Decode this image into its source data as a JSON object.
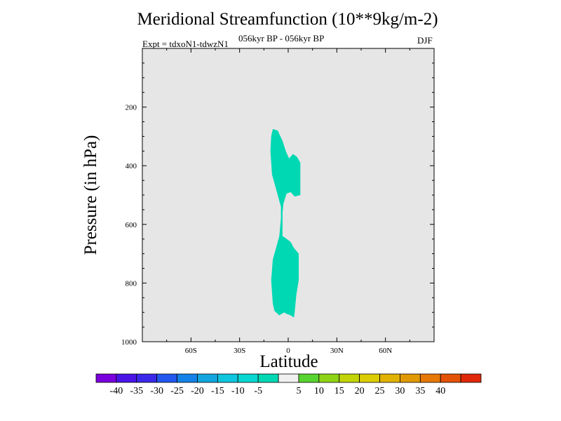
{
  "title": "Meridional Streamfunction (10**9kg/m-2)",
  "subtitle_left": "Expt = tdxoN1-tdwzN1",
  "subtitle_center": "056kyr BP - 056kyr BP",
  "subtitle_right": "DJF",
  "chart_data": {
    "type": "contour",
    "title": "Meridional Streamfunction (10**9kg/m-2)",
    "xlabel": "Latitude",
    "ylabel": "Pressure (in hPa)",
    "xlim": [
      -90,
      90
    ],
    "ylim": [
      1000,
      0
    ],
    "x_ticks": [
      {
        "value": -60,
        "label": "60S"
      },
      {
        "value": -30,
        "label": "30S"
      },
      {
        "value": 0,
        "label": "0"
      },
      {
        "value": 30,
        "label": "30N"
      },
      {
        "value": 60,
        "label": "60N"
      }
    ],
    "y_ticks": [
      {
        "value": 200,
        "label": "200"
      },
      {
        "value": 400,
        "label": "400"
      },
      {
        "value": 600,
        "label": "600"
      },
      {
        "value": 800,
        "label": "800"
      },
      {
        "value": 1000,
        "label": "1000"
      }
    ],
    "background_color": "#e6e6e6",
    "filled_regions": [
      {
        "level_range": [
          -10,
          -5
        ],
        "color": "#00d8b4",
        "polygon": [
          [
            -9.5,
            275
          ],
          [
            -6.5,
            280
          ],
          [
            -3.5,
            315
          ],
          [
            -1.5,
            350
          ],
          [
            0.5,
            375
          ],
          [
            3,
            360
          ],
          [
            5.5,
            370
          ],
          [
            7.5,
            390
          ],
          [
            7.5,
            500
          ],
          [
            4,
            505
          ],
          [
            1.5,
            490
          ],
          [
            -1,
            495
          ],
          [
            -3,
            530
          ],
          [
            -3.5,
            560
          ],
          [
            -3.5,
            640
          ],
          [
            -2,
            645
          ],
          [
            1.5,
            660
          ],
          [
            3.5,
            680
          ],
          [
            6.5,
            700
          ],
          [
            6.5,
            790
          ],
          [
            5,
            840
          ],
          [
            4,
            900
          ],
          [
            3.5,
            918
          ],
          [
            1.5,
            910
          ],
          [
            -1,
            905
          ],
          [
            -2.5,
            900
          ],
          [
            -5.5,
            910
          ],
          [
            -8.5,
            895
          ],
          [
            -9.5,
            870
          ],
          [
            -10.5,
            790
          ],
          [
            -9.5,
            720
          ],
          [
            -7.5,
            680
          ],
          [
            -5.5,
            640
          ],
          [
            -4.5,
            580
          ],
          [
            -4.5,
            540
          ],
          [
            -6.5,
            500
          ],
          [
            -8.5,
            460
          ],
          [
            -10,
            430
          ],
          [
            -11,
            350
          ],
          [
            -10.5,
            300
          ]
        ]
      }
    ],
    "colorbar": {
      "orientation": "horizontal",
      "colors": [
        "#7a00dc",
        "#4a14e6",
        "#3a28ea",
        "#2258ee",
        "#1482e8",
        "#12a6e0",
        "#0ec6de",
        "#08d6d0",
        "#00d8b4",
        "#f0f0f0",
        "#58d430",
        "#8ed416",
        "#c2d406",
        "#dccc04",
        "#e2b202",
        "#e29a04",
        "#e67806",
        "#e45208",
        "#e0280a"
      ],
      "labels": [
        "-40",
        "-35",
        "-30",
        "-25",
        "-20",
        "-15",
        "-10",
        "-5",
        "5",
        "10",
        "15",
        "20",
        "25",
        "30",
        "35",
        "40"
      ]
    }
  }
}
